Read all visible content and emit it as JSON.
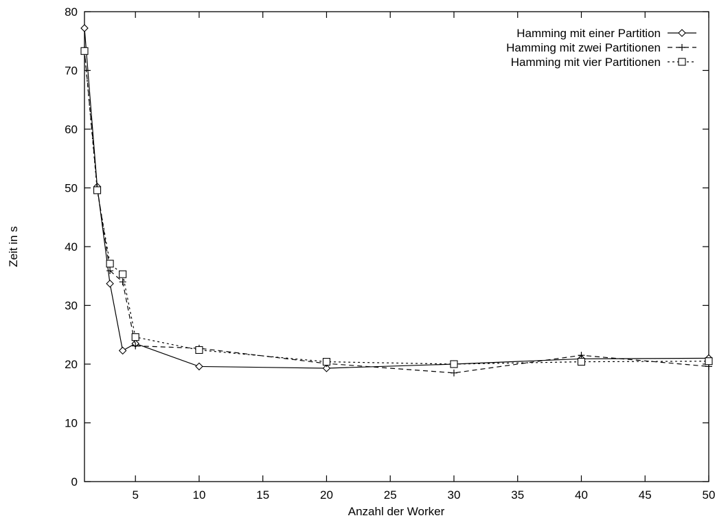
{
  "chart_data": {
    "type": "line",
    "title": "",
    "xlabel": "Anzahl der Worker",
    "ylabel": "Zeit in s",
    "xlim": [
      1,
      50
    ],
    "ylim": [
      0,
      80
    ],
    "xticks": [
      5,
      10,
      15,
      20,
      25,
      30,
      35,
      40,
      45,
      50
    ],
    "yticks": [
      0,
      10,
      20,
      30,
      40,
      50,
      60,
      70,
      80
    ],
    "grid": false,
    "legend_position": "top-right",
    "x": [
      1,
      2,
      3,
      4,
      5,
      10,
      20,
      30,
      40,
      50
    ],
    "series": [
      {
        "name": "Hamming mit einer Partition",
        "marker": "diamond",
        "line": "solid",
        "values": [
          77.2,
          50.2,
          33.7,
          22.3,
          23.5,
          19.6,
          19.3,
          20.0,
          20.9,
          21.0
        ]
      },
      {
        "name": "Hamming mit zwei Partitionen",
        "marker": "plus",
        "line": "dashed",
        "values": [
          73.5,
          50.0,
          35.9,
          34.0,
          23.1,
          22.7,
          20.1,
          18.5,
          21.5,
          19.6
        ]
      },
      {
        "name": "Hamming mit vier Partitionen",
        "marker": "square",
        "line": "dotted",
        "values": [
          73.3,
          49.6,
          37.1,
          35.3,
          24.6,
          22.4,
          20.4,
          20.0,
          20.4,
          20.5
        ]
      }
    ]
  }
}
